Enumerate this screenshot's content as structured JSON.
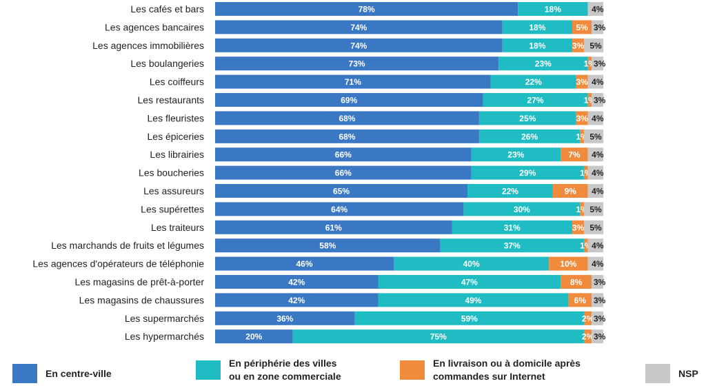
{
  "chart_data": {
    "type": "bar",
    "orientation": "horizontal",
    "stacked": true,
    "xlim": [
      0,
      100
    ],
    "grid": false,
    "legend_position": "bottom",
    "categories": [
      "Les cafés et bars",
      "Les agences bancaires",
      "Les agences immobilières",
      "Les boulangeries",
      "Les coiffeurs",
      "Les restaurants",
      "Les fleuristes",
      "Les épiceries",
      "Les librairies",
      "Les boucheries",
      "Les assureurs",
      "Les supérettes",
      "Les traiteurs",
      "Les marchands de fruits et légumes",
      "Les agences d'opérateurs de téléphonie",
      "Les magasins de prêt-à-porter",
      "Les magasins de chaussures",
      "Les supermarchés",
      "Les hypermarchés"
    ],
    "series": [
      {
        "name": "En centre-ville",
        "color": "#3a78c3",
        "values": [
          78,
          74,
          74,
          73,
          71,
          69,
          68,
          68,
          66,
          66,
          65,
          64,
          61,
          58,
          46,
          42,
          42,
          36,
          20
        ]
      },
      {
        "name": "En périphérie des villes ou en zone commerciale",
        "color": "#1fbcc4",
        "values": [
          18,
          18,
          18,
          23,
          22,
          27,
          25,
          26,
          23,
          29,
          22,
          30,
          31,
          37,
          40,
          47,
          49,
          59,
          75
        ]
      },
      {
        "name": "En livraison ou à domicile après commandes sur Internet",
        "color": "#f08a3c",
        "values": [
          0,
          5,
          3,
          1,
          3,
          1,
          3,
          1,
          7,
          1,
          9,
          1,
          3,
          1,
          10,
          8,
          6,
          2,
          2
        ]
      },
      {
        "name": "NSP",
        "color": "#c8c8c8",
        "values": [
          4,
          3,
          5,
          3,
          4,
          3,
          4,
          5,
          4,
          4,
          4,
          5,
          5,
          4,
          4,
          3,
          3,
          3,
          3
        ]
      }
    ]
  },
  "legend": [
    {
      "label_line1": "En centre-ville",
      "label_line2": ""
    },
    {
      "label_line1": "En périphérie des villes",
      "label_line2": "ou en zone commerciale"
    },
    {
      "label_line1": "En livraison ou à domicile après",
      "label_line2": "commandes sur Internet"
    },
    {
      "label_line1": "NSP",
      "label_line2": ""
    }
  ]
}
